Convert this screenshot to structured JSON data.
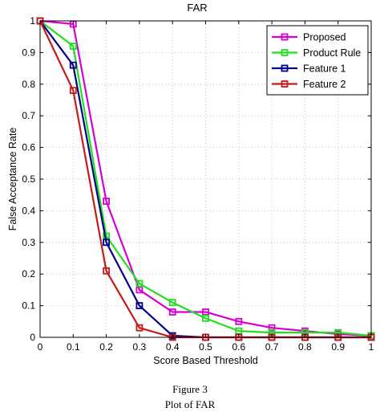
{
  "chart_data": {
    "type": "line",
    "title": "FAR",
    "xlabel": "Score Based Threshold",
    "ylabel": "False Acceptance Rate",
    "xlim": [
      0,
      1
    ],
    "ylim": [
      0,
      1
    ],
    "grid": true,
    "legend_position": "top-right",
    "xticks": [
      "0",
      "0.1",
      "0.2",
      "0.3",
      "0.4",
      "0.5",
      "0.6",
      "0.7",
      "0.8",
      "0.9",
      "1"
    ],
    "yticks": [
      "0",
      "0.1",
      "0.2",
      "0.3",
      "0.4",
      "0.5",
      "0.6",
      "0.7",
      "0.8",
      "0.9",
      "1"
    ],
    "x": [
      0,
      0.1,
      0.2,
      0.3,
      0.4,
      0.5,
      0.6,
      0.7,
      0.8,
      0.9,
      1.0
    ],
    "series": [
      {
        "name": "Proposed",
        "color": "#d400d4",
        "values": [
          1.0,
          0.99,
          0.43,
          0.15,
          0.08,
          0.08,
          0.05,
          0.03,
          0.02,
          0.01,
          0.005
        ]
      },
      {
        "name": "Product Rule",
        "color": "#22dd22",
        "values": [
          1.0,
          0.92,
          0.32,
          0.17,
          0.11,
          0.06,
          0.02,
          0.015,
          0.015,
          0.015,
          0.005
        ]
      },
      {
        "name": "Feature 1",
        "color": "#00008b",
        "values": [
          1.0,
          0.86,
          0.3,
          0.1,
          0.005,
          0.0,
          0.0,
          0.0,
          0.0,
          0.0,
          0.0
        ]
      },
      {
        "name": "Feature 2",
        "color": "#c41a1a",
        "values": [
          1.0,
          0.78,
          0.21,
          0.03,
          0.0,
          0.0,
          0.0,
          0.0,
          0.0,
          0.0,
          0.0
        ]
      }
    ]
  },
  "caption": {
    "figure": "Figure 3",
    "text": "Plot of FAR"
  }
}
